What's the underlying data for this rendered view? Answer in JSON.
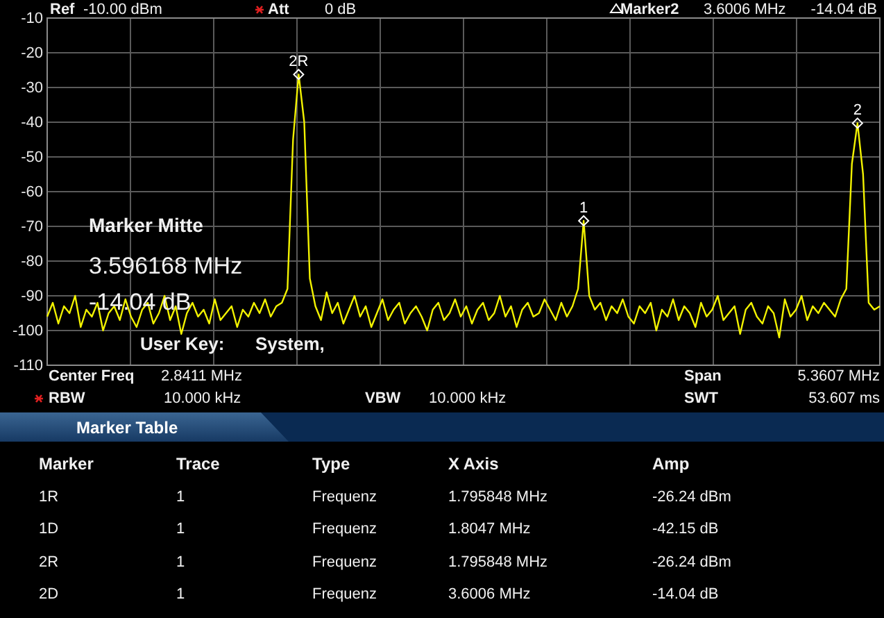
{
  "chart_data": [
    {
      "type": "line",
      "ylim": [
        -110,
        -10
      ],
      "categories": [
        null,
        null,
        null,
        null,
        null,
        null,
        null,
        null,
        null,
        null,
        null,
        null,
        null,
        null,
        null,
        null,
        null,
        null,
        null,
        null,
        null,
        null,
        null,
        null,
        null,
        null,
        null,
        null,
        null,
        null,
        null,
        null,
        null,
        null,
        null,
        null,
        null,
        null,
        null,
        null,
        null,
        null,
        null,
        null,
        null,
        null,
        null,
        null,
        null,
        null,
        null,
        null,
        null,
        null,
        null,
        null,
        null,
        null,
        null,
        null,
        null,
        null,
        null,
        null,
        null,
        null,
        null,
        null,
        null,
        null,
        null,
        null,
        null,
        null,
        null,
        null,
        null,
        null,
        null,
        null,
        null,
        null,
        null,
        null,
        null,
        null,
        null,
        null,
        null,
        null,
        null,
        null,
        null,
        null,
        null,
        null,
        null,
        null,
        null,
        null,
        null,
        null,
        null,
        null,
        null,
        null,
        null,
        null,
        null,
        null,
        null,
        null,
        null,
        null,
        null,
        null,
        null,
        null,
        null,
        null,
        null,
        null,
        null,
        null,
        null,
        null,
        null,
        null,
        null,
        null,
        null,
        null,
        null,
        null,
        null,
        null,
        null,
        null,
        null,
        null,
        null,
        null,
        null,
        null,
        null,
        null,
        null,
        null,
        null,
        null
      ],
      "yticks": [
        -10,
        -20,
        -30,
        -40,
        -50,
        -60,
        -70,
        -80,
        -90,
        -100,
        -110
      ],
      "tick_labels": "y",
      "grid": true,
      "series": [
        {
          "color": "#f2f200",
          "values": [
            -96,
            -92,
            -98,
            -93,
            -95,
            -90,
            -99,
            -94,
            -96,
            -92,
            -100,
            -95,
            -93,
            -97,
            -91,
            -96,
            -99,
            -94,
            -92,
            -98,
            -95,
            -90,
            -97,
            -93,
            -101,
            -95,
            -92,
            -96,
            -94,
            -98,
            -91,
            -97,
            -95,
            -93,
            -99,
            -94,
            -96,
            -92,
            -95,
            -91,
            -96,
            -93,
            -92,
            -88,
            -45,
            -26.24,
            -40,
            -85,
            -93,
            -97,
            -89,
            -95,
            -92,
            -98,
            -94,
            -90,
            -96,
            -93,
            -99,
            -95,
            -91,
            -97,
            -94,
            -92,
            -98,
            -95,
            -93,
            -96,
            -100,
            -94,
            -92,
            -97,
            -95,
            -91,
            -96,
            -93,
            -98,
            -94,
            -92,
            -97,
            -95,
            -90,
            -96,
            -93,
            -99,
            -94,
            -92,
            -96,
            -95,
            -91,
            -94,
            -97,
            -92,
            -96,
            -93,
            -88,
            -68.39,
            -90,
            -94,
            -92,
            -97,
            -93,
            -95,
            -91,
            -96,
            -98,
            -93,
            -95,
            -92,
            -100,
            -94,
            -96,
            -91,
            -97,
            -93,
            -95,
            -99,
            -92,
            -96,
            -94,
            -90,
            -97,
            -95,
            -93,
            -101,
            -94,
            -92,
            -96,
            -98,
            -93,
            -95,
            -102,
            -91,
            -96,
            -94,
            -90,
            -97,
            -93,
            -95,
            -92,
            -94,
            -96,
            -91,
            -88,
            -52,
            -40.28,
            -55,
            -92,
            -94,
            -93
          ]
        }
      ],
      "annotations": [
        {
          "text": "2R",
          "y": -26.24
        },
        {
          "text": "1",
          "y": -68.39
        },
        {
          "text": "2",
          "y": -40.28
        },
        "Ref",
        "-10.00 dBm",
        "Att",
        "0 dB",
        "Marker2",
        "3.6006 MHz",
        "-14.04 dB",
        "Marker Mitte",
        "3.596168 MHz",
        "-14.04 dB",
        "User Key:",
        "System,",
        "Center Freq",
        "2.8411 MHz",
        "RBW",
        "10.000 kHz",
        "VBW",
        "10.000 kHz",
        "Span",
        "5.3607 MHz",
        "SWT",
        "53.607 ms"
      ]
    },
    {
      "type": "other",
      "title": "Marker Table",
      "annotations": [
        "Marker",
        "Trace",
        "Type",
        "X Axis",
        "Amp",
        "1R",
        "1",
        "Frequenz",
        "1.795848 MHz",
        "-26.24 dBm",
        "1D",
        "1",
        "Frequenz",
        "1.8047 MHz",
        "-42.15 dB",
        "2R",
        "1",
        "Frequenz",
        "1.795848 MHz",
        "-26.24 dBm",
        "2D",
        "1",
        "Frequenz",
        "3.6006 MHz",
        "-14.04 dB"
      ]
    }
  ]
}
